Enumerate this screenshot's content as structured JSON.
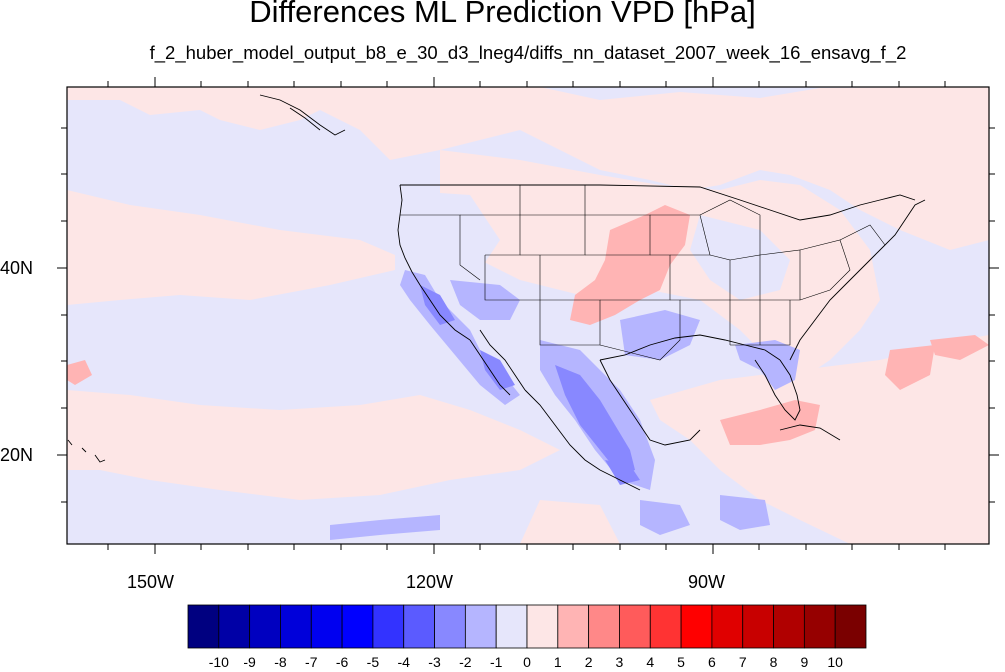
{
  "title": "Differences ML Prediction VPD [hPa]",
  "subtitle": "f_2_huber_model_output_b8_e_30_d3_lneg4/diffs_nn_dataset_2007_week_16_ensavg_f_2",
  "axes": {
    "lat_labels": [
      "40N",
      "20N"
    ],
    "lon_labels": [
      "150W",
      "120W",
      "90W"
    ]
  },
  "colorbar": {
    "labels": [
      "-10",
      "-9",
      "-8",
      "-7",
      "-6",
      "-5",
      "-4",
      "-3",
      "-2",
      "-1",
      "0",
      "1",
      "2",
      "3",
      "4",
      "5",
      "6",
      "7",
      "8",
      "9",
      "10"
    ],
    "colors": [
      "#000080",
      "#0000a6",
      "#0000c0",
      "#0000da",
      "#0000f0",
      "#0000ff",
      "#3333ff",
      "#5b5bff",
      "#8888ff",
      "#b5b5ff",
      "#e6e6fb",
      "#fde6e6",
      "#ffb4b4",
      "#ff8888",
      "#ff5b5b",
      "#ff3333",
      "#ff0000",
      "#e00000",
      "#c80000",
      "#b00000",
      "#960000",
      "#7a0000"
    ]
  }
}
